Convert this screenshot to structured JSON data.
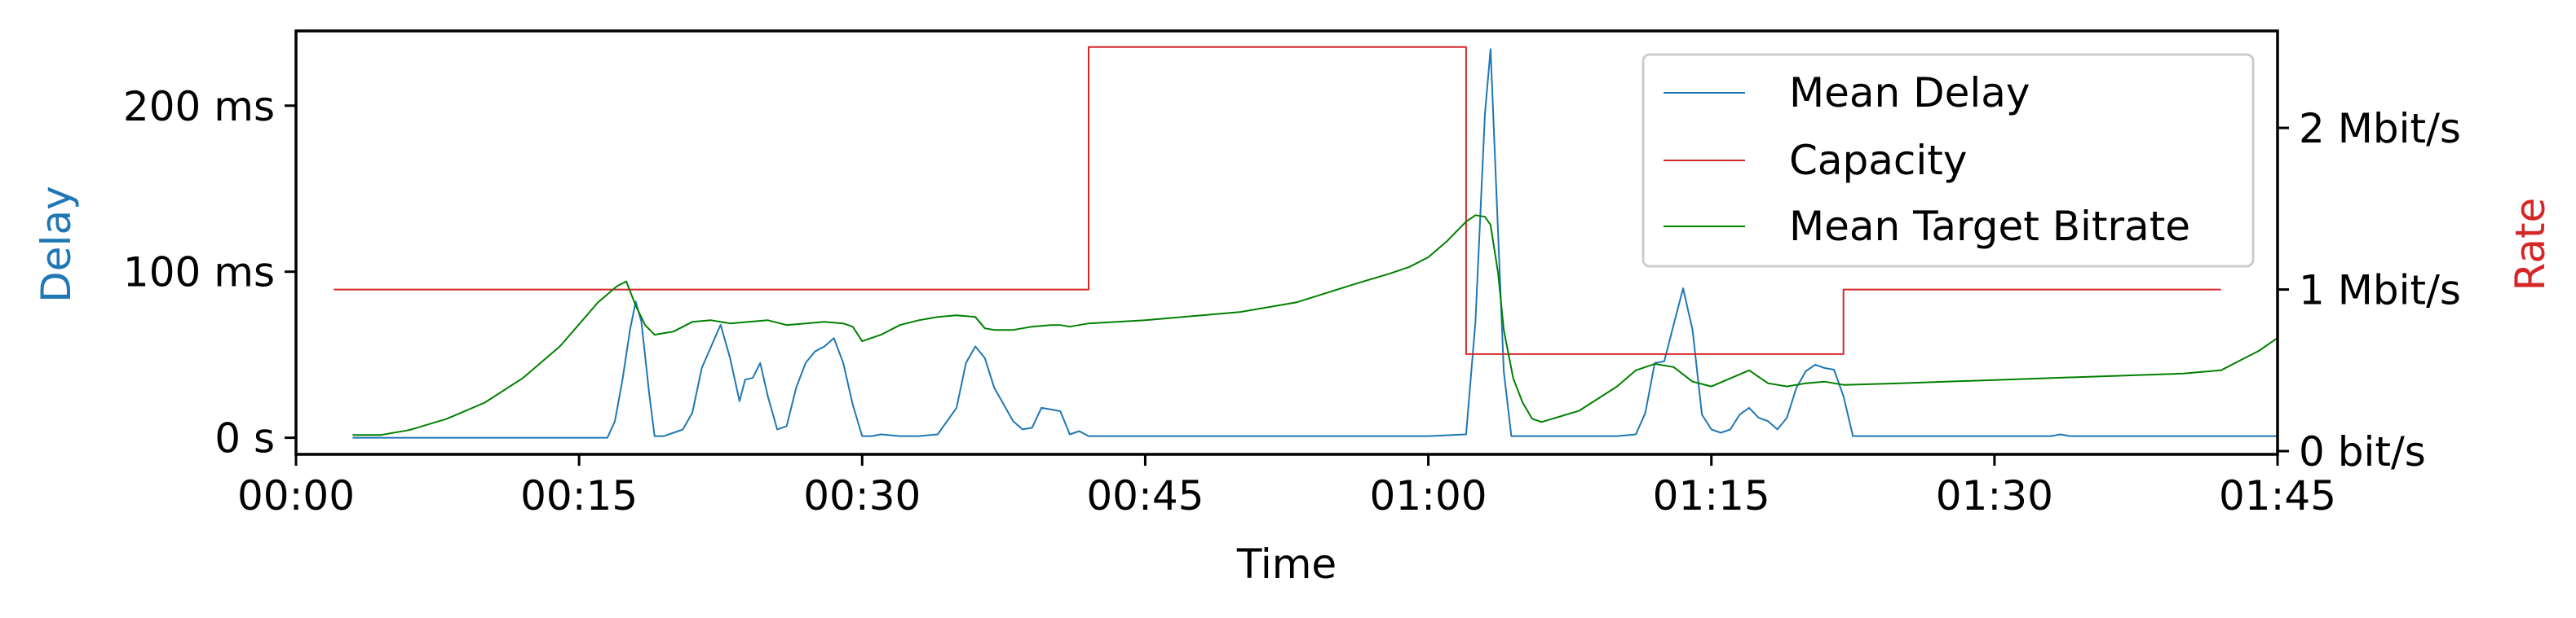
{
  "chart_data": {
    "type": "line",
    "title": "",
    "xlabel": "Time",
    "ylabel_left": "Delay",
    "ylabel_right": "Rate",
    "x_ticks": [
      "00:00",
      "00:15",
      "00:30",
      "00:45",
      "01:00",
      "01:15",
      "01:30",
      "01:45"
    ],
    "left_ticks": [
      "0 s",
      "100 ms",
      "200 ms"
    ],
    "right_ticks": [
      "0 bit/s",
      "1 Mbit/s",
      "2 Mbit/s"
    ],
    "xlim_seconds": [
      0,
      105
    ],
    "ylim_left_ms": [
      -10,
      245
    ],
    "ylim_right_mbit": [
      -0.02,
      2.6
    ],
    "grid": false,
    "legend_position": "top-right",
    "colors": {
      "delay": "#1f77b4",
      "capacity": "#d62728",
      "target": "#008000"
    },
    "series": [
      {
        "name": "Mean Delay",
        "axis": "left",
        "units": "ms",
        "x": [
          3,
          16.5,
          16.9,
          17.3,
          17.7,
          18.0,
          18.3,
          18.7,
          19.0,
          19.5,
          20.0,
          20.5,
          21.0,
          21.5,
          22.0,
          22.5,
          23.0,
          23.5,
          23.8,
          24.2,
          24.6,
          25.0,
          25.5,
          26.0,
          26.5,
          27.0,
          27.5,
          28.0,
          28.5,
          29.0,
          29.5,
          30.0,
          30.5,
          31.0,
          32.0,
          33.0,
          34.0,
          35.0,
          35.5,
          36.0,
          36.5,
          37.0,
          37.5,
          38.0,
          38.5,
          39.0,
          39.5,
          40.0,
          40.5,
          41.0,
          41.5,
          42.0,
          50,
          60,
          62,
          62.5,
          63.0,
          63.3,
          63.6,
          64.0,
          64.4,
          65,
          70,
          71.0,
          71.5,
          72.0,
          72.5,
          73.0,
          73.5,
          74.0,
          74.5,
          75.0,
          75.5,
          76.0,
          76.5,
          77.0,
          77.5,
          78.0,
          78.5,
          79.0,
          79.5,
          80.0,
          80.5,
          81.0,
          81.5,
          82.0,
          82.5,
          93.0,
          93.5,
          94.0,
          105
        ],
        "y": [
          0,
          0,
          10,
          35,
          65,
          82,
          70,
          28,
          1,
          1,
          3,
          5,
          15,
          42,
          55,
          68,
          48,
          22,
          35,
          36,
          45,
          25,
          5,
          7,
          30,
          45,
          52,
          55,
          60,
          45,
          20,
          1,
          1,
          2,
          1,
          1,
          2,
          18,
          45,
          55,
          48,
          30,
          20,
          10,
          5,
          6,
          18,
          17,
          16,
          2,
          4,
          1,
          1,
          1,
          2,
          70,
          195,
          234,
          150,
          40,
          1,
          1,
          1,
          2,
          15,
          45,
          46,
          68,
          90,
          65,
          14,
          5,
          3,
          5,
          14,
          18,
          12,
          10,
          5,
          12,
          30,
          40,
          44,
          42,
          41,
          25,
          1,
          1,
          2,
          1,
          1
        ]
      },
      {
        "name": "Capacity",
        "axis": "right",
        "units": "Mbit/s",
        "x": [
          2,
          42,
          42,
          62,
          62,
          82,
          82,
          102
        ],
        "y": [
          1,
          1,
          2.5,
          2.5,
          0.6,
          0.6,
          1,
          1
        ]
      },
      {
        "name": "Mean Target Bitrate",
        "axis": "right",
        "units": "Mbit/s",
        "x": [
          3,
          4.5,
          6,
          8,
          10,
          12,
          14,
          16,
          17.0,
          17.5,
          18,
          18.5,
          19,
          19.5,
          20,
          21,
          22,
          23,
          24,
          25,
          26,
          27,
          28,
          29,
          29.5,
          30,
          31,
          32,
          33,
          34,
          35,
          36,
          36.5,
          37,
          38,
          39,
          40,
          40.5,
          41,
          42,
          45,
          50,
          53,
          56,
          58,
          59,
          60,
          61,
          62,
          62.5,
          63.0,
          63.3,
          63.7,
          64.0,
          64.5,
          65,
          65.5,
          66,
          68,
          70,
          71,
          72,
          73,
          74,
          75,
          76,
          77,
          78,
          79,
          80,
          81,
          82,
          85,
          90,
          95,
          100,
          102,
          103,
          104,
          105
        ],
        "y": [
          0.1,
          0.1,
          0.13,
          0.2,
          0.3,
          0.45,
          0.65,
          0.92,
          1.02,
          1.05,
          0.9,
          0.78,
          0.72,
          0.73,
          0.74,
          0.8,
          0.81,
          0.79,
          0.8,
          0.81,
          0.78,
          0.79,
          0.8,
          0.79,
          0.77,
          0.68,
          0.72,
          0.78,
          0.81,
          0.83,
          0.84,
          0.83,
          0.76,
          0.75,
          0.75,
          0.77,
          0.78,
          0.78,
          0.77,
          0.79,
          0.81,
          0.86,
          0.92,
          1.03,
          1.1,
          1.14,
          1.2,
          1.3,
          1.42,
          1.46,
          1.45,
          1.4,
          1.1,
          0.75,
          0.45,
          0.3,
          0.2,
          0.18,
          0.25,
          0.4,
          0.5,
          0.54,
          0.52,
          0.43,
          0.4,
          0.45,
          0.5,
          0.42,
          0.4,
          0.42,
          0.43,
          0.41,
          0.42,
          0.44,
          0.46,
          0.48,
          0.5,
          0.56,
          0.62,
          0.7
        ]
      }
    ]
  }
}
